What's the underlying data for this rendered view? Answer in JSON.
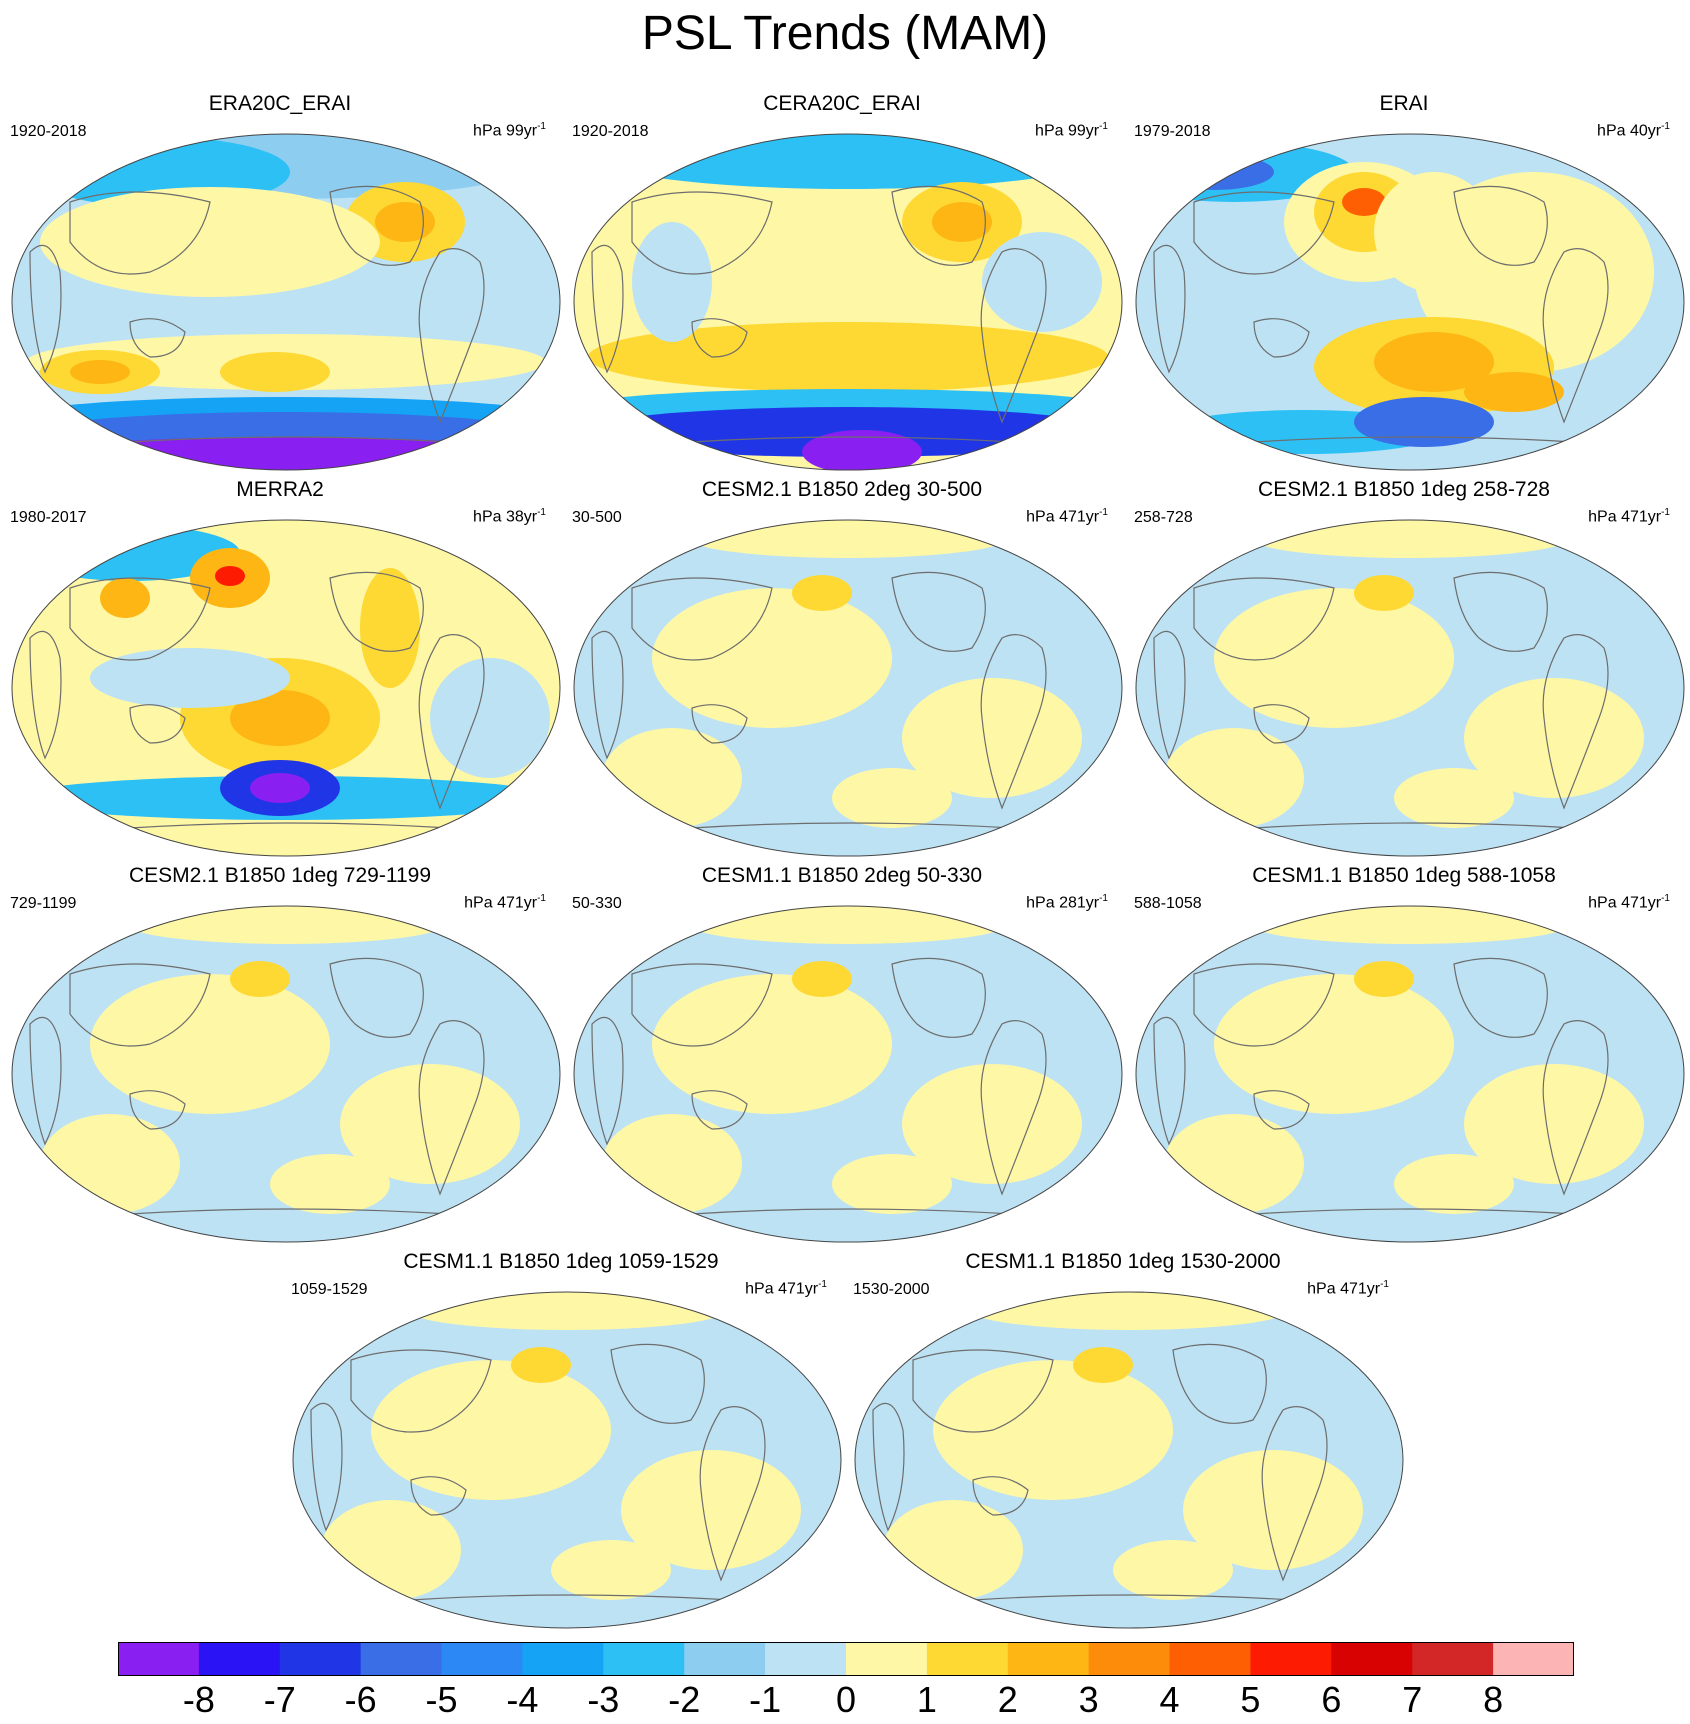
{
  "title": "PSL Trends (MAM)",
  "colors": {
    "levels": [
      "#8a1ff2",
      "#2a14f5",
      "#2036e6",
      "#3a6ee6",
      "#2b88f5",
      "#14a3f5",
      "#2cc0f5",
      "#8dcdf0",
      "#bde2f4",
      "#fef7a6",
      "#fed833",
      "#fdb613",
      "#fd8c0a",
      "#fd5f02",
      "#fd1b02",
      "#d90202",
      "#d32727",
      "#fcb4b4"
    ],
    "coast": "#6d6d6d",
    "ocean_neg": "#bde2f4",
    "ocean_pos": "#fef7a6"
  },
  "colorbar": {
    "labels": [
      "-8",
      "-7",
      "-6",
      "-5",
      "-4",
      "-3",
      "-2",
      "-1",
      "0",
      "1",
      "2",
      "3",
      "4",
      "5",
      "6",
      "7",
      "8"
    ]
  },
  "panels": [
    {
      "title": "ERA20C_ERAI",
      "period": "1920-2018",
      "units": "hPa 99yr",
      "exp": "-1",
      "style": "era20c"
    },
    {
      "title": "CERA20C_ERAI",
      "period": "1920-2018",
      "units": "hPa 99yr",
      "exp": "-1",
      "style": "cera20c"
    },
    {
      "title": "ERAI",
      "period": "1979-2018",
      "units": "hPa 40yr",
      "exp": "-1",
      "style": "erai"
    },
    {
      "title": "MERRA2",
      "period": "1980-2017",
      "units": "hPa 38yr",
      "exp": "-1",
      "style": "merra2"
    },
    {
      "title": "CESM2.1 B1850 2deg 30-500",
      "period": "30-500",
      "units": "hPa 471yr",
      "exp": "-1",
      "style": "model"
    },
    {
      "title": "CESM2.1 B1850 1deg 258-728",
      "period": "258-728",
      "units": "hPa 471yr",
      "exp": "-1",
      "style": "model"
    },
    {
      "title": "CESM2.1 B1850 1deg 729-1199",
      "period": "729-1199",
      "units": "hPa 471yr",
      "exp": "-1",
      "style": "model"
    },
    {
      "title": "CESM1.1 B1850 2deg 50-330",
      "period": "50-330",
      "units": "hPa 281yr",
      "exp": "-1",
      "style": "model"
    },
    {
      "title": "CESM1.1 B1850 1deg 588-1058",
      "period": "588-1058",
      "units": "hPa 471yr",
      "exp": "-1",
      "style": "model"
    },
    {
      "title": "CESM1.1 B1850 1deg 1059-1529",
      "period": "1059-1529",
      "units": "hPa 471yr",
      "exp": "-1",
      "style": "model"
    },
    {
      "title": "CESM1.1 B1850 1deg 1530-2000",
      "period": "1530-2000",
      "units": "hPa 471yr",
      "exp": "-1",
      "style": "model"
    }
  ]
}
